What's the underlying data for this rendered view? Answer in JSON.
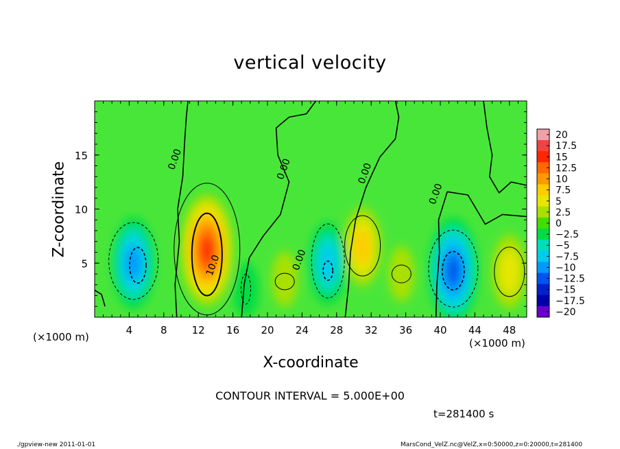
{
  "chart_data": {
    "type": "heatmap",
    "title": "vertical velocity",
    "xlabel": "X-coordinate",
    "ylabel": "Z-coordinate",
    "x_unit_label": "(×1000 m)",
    "xlim": [
      0,
      50
    ],
    "ylim": [
      0,
      20
    ],
    "x_ticks": [
      4,
      8,
      12,
      16,
      20,
      24,
      28,
      32,
      36,
      40,
      44,
      48
    ],
    "y_ticks": [
      5,
      10,
      15
    ],
    "colorbar": {
      "levels": [
        20,
        17.5,
        15,
        12.5,
        10,
        7.5,
        5,
        2.5,
        0,
        -2.5,
        -5,
        -7.5,
        -10,
        -12.5,
        -15,
        -17.5,
        -20
      ],
      "labels": [
        "20",
        "17.5",
        "15",
        "12.5",
        "10",
        "7.5",
        "5",
        "2.5",
        "0",
        "−2.5",
        "−5",
        "−7.5",
        "−10",
        "−12.5",
        "−15",
        "−17.5",
        "−20"
      ],
      "colors": [
        "#f2a0a8",
        "#ee4444",
        "#ff2600",
        "#ff6a00",
        "#ff9900",
        "#ffcc00",
        "#e6e600",
        "#aae000",
        "#44dd00",
        "#00dd44",
        "#00ddbb",
        "#00ccee",
        "#0099ff",
        "#0055ee",
        "#0022cc",
        "#0000aa",
        "#6a00cc"
      ]
    },
    "background_color": "#49e63a",
    "contour_interval": 5,
    "contour_labels": [
      "0.00",
      "0.00",
      "0.00",
      "0.00",
      "0.00",
      "10.0"
    ],
    "features": [
      {
        "kind": "updraft",
        "x": 13,
        "z": 6.2,
        "peak": 15
      },
      {
        "kind": "updraft",
        "x": 31,
        "z": 6.5,
        "peak": 8
      },
      {
        "kind": "updraft",
        "x": 48,
        "z": 4.2,
        "peak": 7
      },
      {
        "kind": "updraft",
        "x": 22,
        "z": 3.5,
        "peak": 3
      },
      {
        "kind": "updraft",
        "x": 35.5,
        "z": 4,
        "peak": 3
      },
      {
        "kind": "downdraft",
        "x": 4.5,
        "z": 5,
        "peak": -11
      },
      {
        "kind": "downdraft",
        "x": 27,
        "z": 5,
        "peak": -9
      },
      {
        "kind": "downdraft",
        "x": 41.5,
        "z": 4.3,
        "peak": -14
      },
      {
        "kind": "downdraft",
        "x": 17.5,
        "z": 2.5,
        "peak": -3
      }
    ]
  },
  "labels": {
    "title": "vertical velocity",
    "xlabel": "X-coordinate",
    "ylabel": "Z-coordinate",
    "xunit_left": "(×1000 m)",
    "xunit_right": "(×1000 m)",
    "contour_note": "CONTOUR INTERVAL = 5.000E+00",
    "time": "t=281400 s",
    "footer_left": "./gpview-new  2011-01-01",
    "footer_right": "MarsCond_VelZ.nc@VelZ,x=0:50000,z=0:20000,t=281400"
  }
}
